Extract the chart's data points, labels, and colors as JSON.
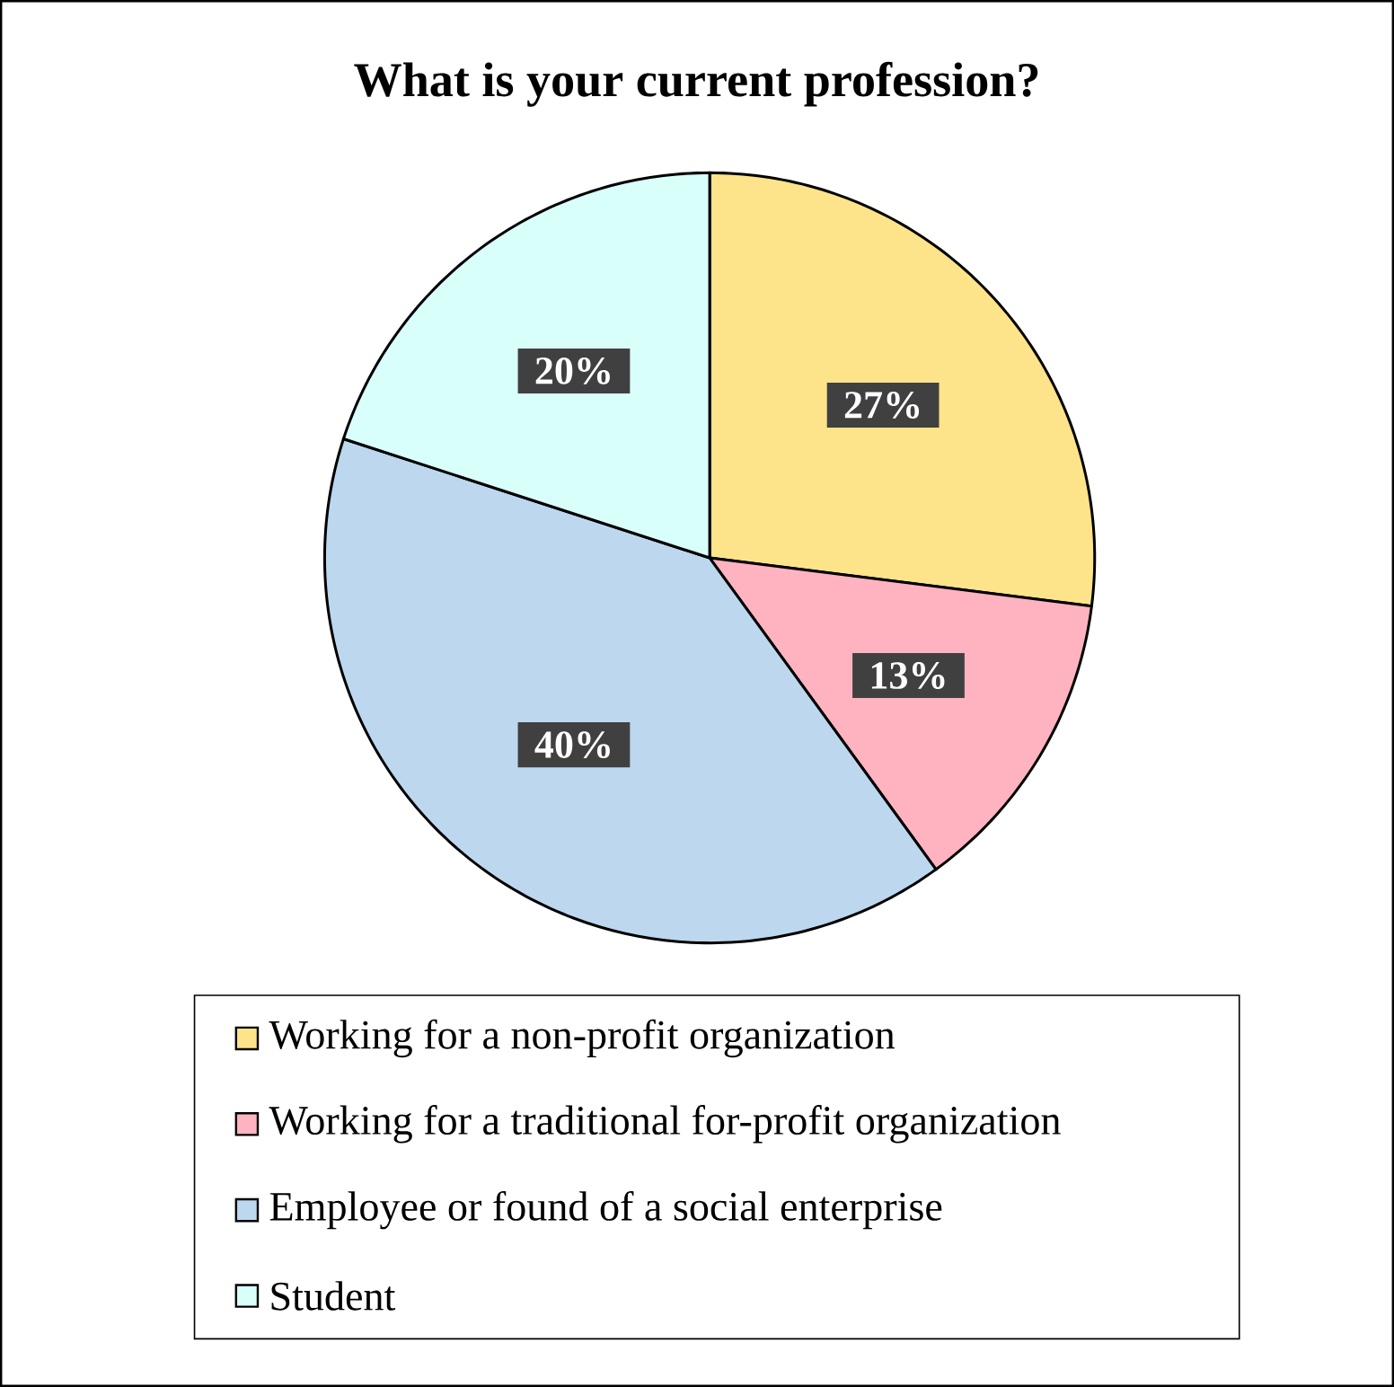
{
  "chart_data": {
    "type": "pie",
    "title": "What is your current profession?",
    "categories": [
      "Working for a non-profit organization",
      "Working for a traditional for-profit organization",
      "Employee or found of a social enterprise",
      "Student"
    ],
    "values": [
      27,
      13,
      40,
      20
    ],
    "value_labels": [
      "27%",
      "13%",
      "40%",
      "20%"
    ],
    "colors": [
      "#fde38a",
      "#ffb3c0",
      "#bdd7ee",
      "#d9fffb"
    ],
    "legend": "bottom"
  }
}
